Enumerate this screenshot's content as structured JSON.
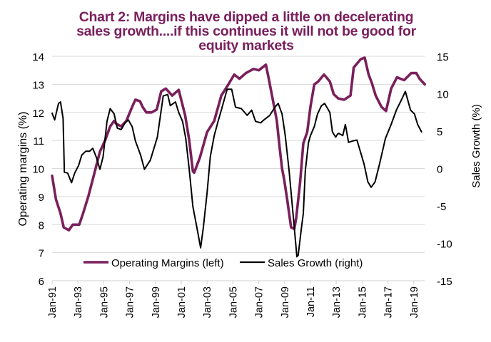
{
  "chart_data": {
    "type": "line",
    "title_lines": [
      "Chart 2: Margins have dipped a little on decelerating",
      "sales growth....if this continues it will not be good for",
      "equity markets"
    ],
    "title": "Chart 2: Margins have dipped a little on decelerating sales growth....if this continues it will not be good for equity markets",
    "xlabel": "",
    "ylabel": "Operating  margins (%)",
    "y2label": "Sales Growth  (%)",
    "xlim": [
      1991.0,
      2019.85
    ],
    "ylim": [
      6,
      14
    ],
    "y2lim": [
      -15,
      15
    ],
    "yticks": [
      6,
      7,
      8,
      9,
      10,
      11,
      12,
      13,
      14
    ],
    "y2ticks": [
      -15,
      -10,
      -5,
      0,
      5,
      10,
      15
    ],
    "xticks": [
      {
        "x": 1991,
        "label": "Jan-91"
      },
      {
        "x": 1993,
        "label": "Jan-93"
      },
      {
        "x": 1995,
        "label": "Jan-95"
      },
      {
        "x": 1997,
        "label": "Jan-97"
      },
      {
        "x": 1999,
        "label": "Jan-99"
      },
      {
        "x": 2001,
        "label": "Jan-01"
      },
      {
        "x": 2003,
        "label": "Jan-03"
      },
      {
        "x": 2005,
        "label": "Jan-05"
      },
      {
        "x": 2007,
        "label": "Jan-07"
      },
      {
        "x": 2009,
        "label": "Jan-09"
      },
      {
        "x": 2011,
        "label": "Jan-11"
      },
      {
        "x": 2013,
        "label": "Jan-13"
      },
      {
        "x": 2015,
        "label": "Jan-15"
      },
      {
        "x": 2017,
        "label": "Jan-17"
      },
      {
        "x": 2019,
        "label": "Jan-19"
      }
    ],
    "grid": true,
    "legend_position": "bottom-inside",
    "series": [
      {
        "name": "Operating Margins (left)",
        "axis": "left",
        "color": "#7a1f5c",
        "points": [
          [
            1991.0,
            9.74
          ],
          [
            1991.3,
            8.9
          ],
          [
            1991.65,
            8.4
          ],
          [
            1991.9,
            7.9
          ],
          [
            1992.3,
            7.8
          ],
          [
            1992.6,
            8.0
          ],
          [
            1993.1,
            8.0
          ],
          [
            1993.4,
            8.4
          ],
          [
            1993.8,
            9.0
          ],
          [
            1994.2,
            9.7
          ],
          [
            1994.7,
            10.6
          ],
          [
            1995.1,
            11.0
          ],
          [
            1995.5,
            11.5
          ],
          [
            1995.8,
            11.7
          ],
          [
            1995.95,
            11.6
          ],
          [
            1996.35,
            11.5
          ],
          [
            1996.75,
            11.7
          ],
          [
            1997.2,
            12.2
          ],
          [
            1997.45,
            12.45
          ],
          [
            1997.8,
            12.4
          ],
          [
            1998.0,
            12.2
          ],
          [
            1998.3,
            12.0
          ],
          [
            1998.7,
            12.0
          ],
          [
            1999.1,
            12.1
          ],
          [
            1999.45,
            12.75
          ],
          [
            1999.8,
            12.85
          ],
          [
            2000.1,
            12.7
          ],
          [
            2000.3,
            12.6
          ],
          [
            2000.8,
            12.8
          ],
          [
            2001.3,
            11.9
          ],
          [
            2001.6,
            11.05
          ],
          [
            2001.9,
            9.9
          ],
          [
            2002.0,
            9.85
          ],
          [
            2002.45,
            10.4
          ],
          [
            2003.0,
            11.3
          ],
          [
            2003.55,
            11.7
          ],
          [
            2004.1,
            12.6
          ],
          [
            2004.65,
            13.0
          ],
          [
            2005.1,
            13.35
          ],
          [
            2005.5,
            13.2
          ],
          [
            2006.0,
            13.4
          ],
          [
            2006.6,
            13.55
          ],
          [
            2007.0,
            13.5
          ],
          [
            2007.55,
            13.7
          ],
          [
            2007.75,
            13.25
          ],
          [
            2008.15,
            12.3
          ],
          [
            2008.4,
            11.7
          ],
          [
            2008.6,
            10.8
          ],
          [
            2008.8,
            10.0
          ],
          [
            2008.95,
            9.65
          ],
          [
            2009.2,
            8.9
          ],
          [
            2009.35,
            8.4
          ],
          [
            2009.5,
            7.9
          ],
          [
            2009.75,
            7.85
          ],
          [
            2009.9,
            8.25
          ],
          [
            2010.2,
            9.5
          ],
          [
            2010.45,
            10.9
          ],
          [
            2010.75,
            11.3
          ],
          [
            2011.0,
            12.2
          ],
          [
            2011.3,
            13.0
          ],
          [
            2011.6,
            13.1
          ],
          [
            2012.05,
            13.35
          ],
          [
            2012.5,
            13.1
          ],
          [
            2012.8,
            12.65
          ],
          [
            2013.15,
            12.5
          ],
          [
            2013.6,
            12.45
          ],
          [
            2014.1,
            12.6
          ],
          [
            2014.35,
            13.6
          ],
          [
            2014.9,
            13.9
          ],
          [
            2015.2,
            13.95
          ],
          [
            2015.5,
            13.35
          ],
          [
            2015.75,
            13.05
          ],
          [
            2016.05,
            12.6
          ],
          [
            2016.5,
            12.2
          ],
          [
            2016.85,
            12.05
          ],
          [
            2017.25,
            12.85
          ],
          [
            2017.7,
            13.25
          ],
          [
            2018.25,
            13.15
          ],
          [
            2018.8,
            13.4
          ],
          [
            2019.2,
            13.4
          ],
          [
            2019.45,
            13.2
          ],
          [
            2019.85,
            13.0
          ]
        ]
      },
      {
        "name": "Sales Growth (right)",
        "axis": "right",
        "color": "#000000",
        "points": [
          [
            1991.0,
            7.4
          ],
          [
            1991.2,
            6.5
          ],
          [
            1991.5,
            8.7
          ],
          [
            1991.65,
            8.9
          ],
          [
            1991.85,
            6.7
          ],
          [
            1991.95,
            -0.5
          ],
          [
            1992.2,
            -0.6
          ],
          [
            1992.5,
            -1.9
          ],
          [
            1992.75,
            -0.6
          ],
          [
            1993.05,
            0.4
          ],
          [
            1993.3,
            1.8
          ],
          [
            1993.6,
            2.3
          ],
          [
            1993.9,
            2.3
          ],
          [
            1994.15,
            2.7
          ],
          [
            1994.45,
            1.4
          ],
          [
            1994.7,
            -0.1
          ],
          [
            1994.95,
            1.6
          ],
          [
            1995.25,
            6.3
          ],
          [
            1995.5,
            8.0
          ],
          [
            1995.8,
            7.3
          ],
          [
            1996.05,
            5.4
          ],
          [
            1996.35,
            5.2
          ],
          [
            1996.65,
            6.1
          ],
          [
            1996.9,
            6.5
          ],
          [
            1997.2,
            5.6
          ],
          [
            1997.45,
            3.7
          ],
          [
            1997.85,
            1.8
          ],
          [
            1998.15,
            -0.1
          ],
          [
            1998.6,
            1.1
          ],
          [
            1999.15,
            4.2
          ],
          [
            1999.6,
            9.7
          ],
          [
            1999.95,
            9.9
          ],
          [
            2000.15,
            8.4
          ],
          [
            2000.55,
            8.9
          ],
          [
            2000.8,
            7.5
          ],
          [
            2001.1,
            6.3
          ],
          [
            2001.35,
            4.0
          ],
          [
            2001.6,
            0.1
          ],
          [
            2001.9,
            -5.1
          ],
          [
            2002.2,
            -7.8
          ],
          [
            2002.5,
            -10.6
          ],
          [
            2002.7,
            -8.0
          ],
          [
            2003.0,
            -3.2
          ],
          [
            2003.25,
            1.6
          ],
          [
            2003.55,
            4.4
          ],
          [
            2003.85,
            6.3
          ],
          [
            2004.1,
            7.8
          ],
          [
            2004.55,
            10.6
          ],
          [
            2004.9,
            10.6
          ],
          [
            2005.2,
            8.2
          ],
          [
            2005.65,
            8.0
          ],
          [
            2006.1,
            7.1
          ],
          [
            2006.45,
            7.8
          ],
          [
            2006.75,
            6.3
          ],
          [
            2007.15,
            6.1
          ],
          [
            2007.4,
            6.5
          ],
          [
            2007.85,
            7.1
          ],
          [
            2008.25,
            8.2
          ],
          [
            2008.5,
            8.7
          ],
          [
            2008.8,
            7.3
          ],
          [
            2009.05,
            4.4
          ],
          [
            2009.35,
            -0.3
          ],
          [
            2009.6,
            -5.1
          ],
          [
            2009.8,
            -8.9
          ],
          [
            2009.95,
            -11.8
          ],
          [
            2010.05,
            -11.6
          ],
          [
            2010.3,
            -8.0
          ],
          [
            2010.45,
            -6.0
          ],
          [
            2010.6,
            -0.3
          ],
          [
            2010.85,
            3.5
          ],
          [
            2011.0,
            4.4
          ],
          [
            2011.3,
            5.6
          ],
          [
            2011.55,
            7.3
          ],
          [
            2011.85,
            8.4
          ],
          [
            2012.1,
            8.7
          ],
          [
            2012.5,
            7.5
          ],
          [
            2012.7,
            4.9
          ],
          [
            2012.95,
            4.2
          ],
          [
            2013.1,
            4.6
          ],
          [
            2013.2,
            4.7
          ],
          [
            2013.5,
            4.4
          ],
          [
            2013.7,
            5.9
          ],
          [
            2013.95,
            3.5
          ],
          [
            2014.3,
            3.7
          ],
          [
            2014.6,
            3.8
          ],
          [
            2015.15,
            0.6
          ],
          [
            2015.45,
            -1.8
          ],
          [
            2015.7,
            -2.5
          ],
          [
            2016.0,
            -1.8
          ],
          [
            2016.35,
            0.6
          ],
          [
            2016.8,
            4.0
          ],
          [
            2017.25,
            5.9
          ],
          [
            2017.65,
            7.8
          ],
          [
            2018.05,
            9.2
          ],
          [
            2018.35,
            10.3
          ],
          [
            2018.75,
            7.8
          ],
          [
            2019.05,
            7.3
          ],
          [
            2019.3,
            5.9
          ],
          [
            2019.6,
            4.9
          ]
        ]
      }
    ]
  }
}
